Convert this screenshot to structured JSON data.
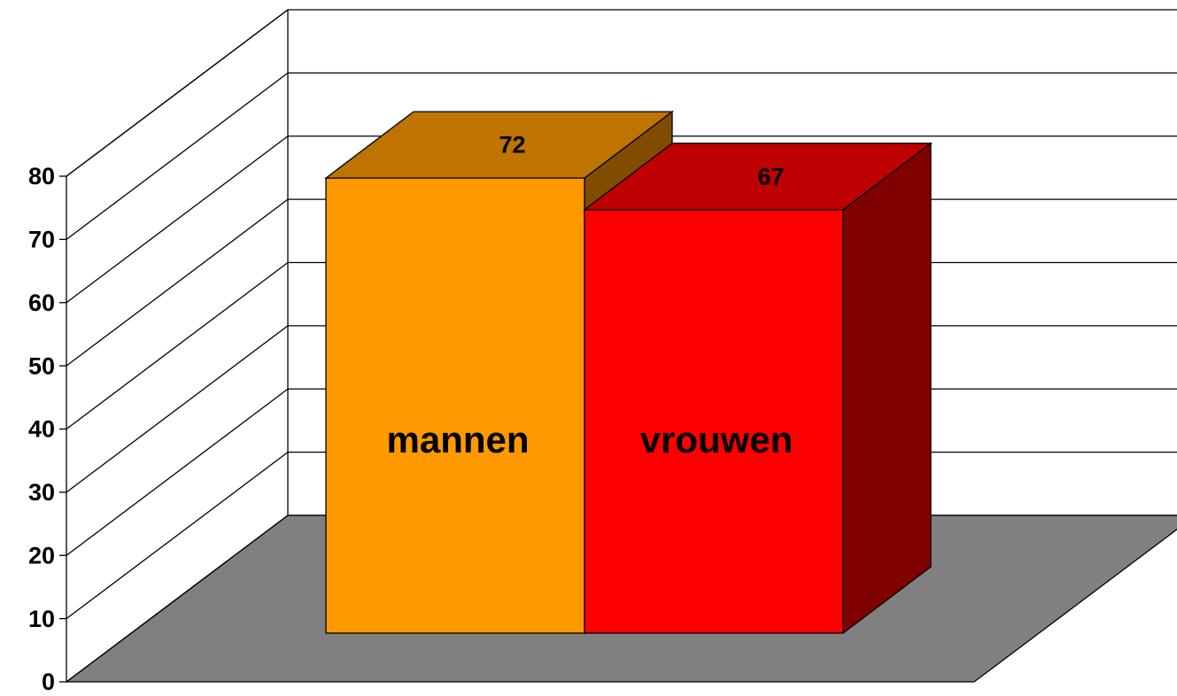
{
  "chart_data": {
    "type": "bar",
    "categories": [
      "mannen",
      "vrouwen"
    ],
    "series": [
      {
        "values": [
          72,
          67
        ],
        "colors": [
          "#ff9900",
          "#ff0000"
        ]
      }
    ],
    "ylim": [
      0,
      80
    ],
    "yticks": [
      0,
      10,
      20,
      30,
      40,
      50,
      60,
      70,
      80
    ],
    "grid": true,
    "floor_color": "#808080"
  }
}
